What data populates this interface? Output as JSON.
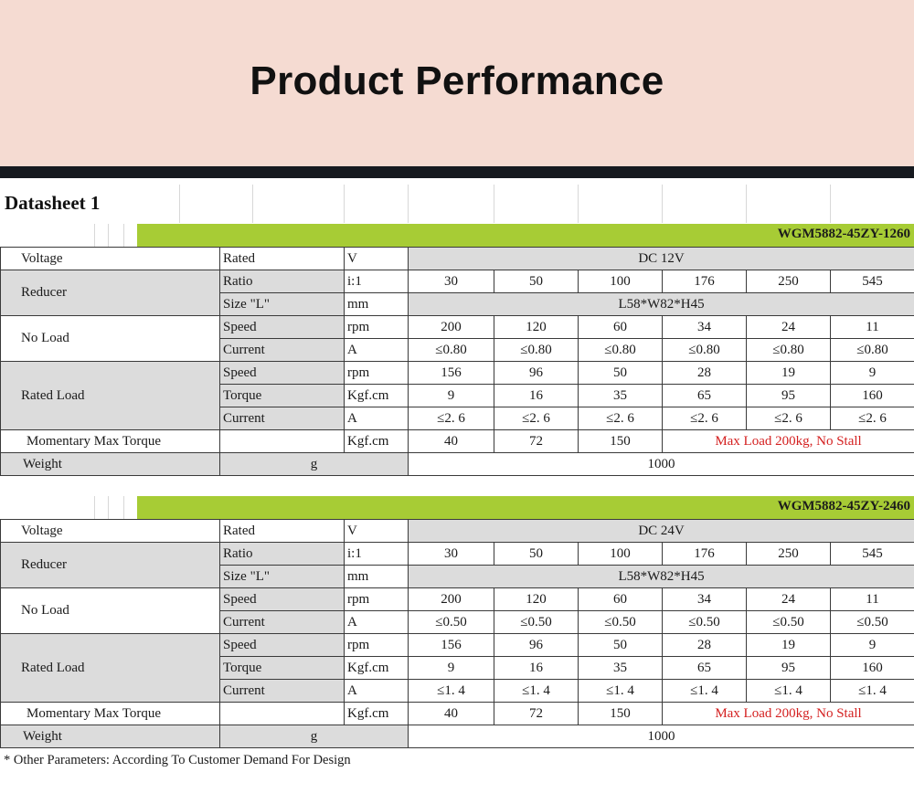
{
  "header": {
    "title": "Product Performance"
  },
  "sheet_title": "Datasheet 1",
  "labels": {
    "voltage": "Voltage",
    "rated": "Rated",
    "v_unit": "V",
    "reducer": "Reducer",
    "ratio": "Ratio",
    "ratio_unit": "i:1",
    "size": "Size \"L\"",
    "mm": "mm",
    "no_load": "No Load",
    "speed": "Speed",
    "rpm": "rpm",
    "current": "Current",
    "amp": "A",
    "rated_load": "Rated Load",
    "torque": "Torque",
    "kgfcm": "Kgf.cm",
    "momentary": "Momentary Max Torque",
    "weight": "Weight",
    "g": "g"
  },
  "tables": [
    {
      "model": "WGM5882-45ZY-1260",
      "voltage": "DC 12V",
      "ratios": [
        "30",
        "50",
        "100",
        "176",
        "250",
        "545"
      ],
      "size": "L58*W82*H45",
      "no_load_speed": [
        "200",
        "120",
        "60",
        "34",
        "24",
        "11"
      ],
      "no_load_current": [
        "≤0.80",
        "≤0.80",
        "≤0.80",
        "≤0.80",
        "≤0.80",
        "≤0.80"
      ],
      "rated_speed": [
        "156",
        "96",
        "50",
        "28",
        "19",
        "9"
      ],
      "rated_torque": [
        "9",
        "16",
        "35",
        "65",
        "95",
        "160"
      ],
      "rated_current": [
        "≤2. 6",
        "≤2. 6",
        "≤2. 6",
        "≤2. 6",
        "≤2. 6",
        "≤2. 6"
      ],
      "momentary": [
        "40",
        "72",
        "150"
      ],
      "momentary_note": "Max Load 200kg, No Stall",
      "weight": "1000"
    },
    {
      "model": "WGM5882-45ZY-2460",
      "voltage": "DC 24V",
      "ratios": [
        "30",
        "50",
        "100",
        "176",
        "250",
        "545"
      ],
      "size": "L58*W82*H45",
      "no_load_speed": [
        "200",
        "120",
        "60",
        "34",
        "24",
        "11"
      ],
      "no_load_current": [
        "≤0.50",
        "≤0.50",
        "≤0.50",
        "≤0.50",
        "≤0.50",
        "≤0.50"
      ],
      "rated_speed": [
        "156",
        "96",
        "50",
        "28",
        "19",
        "9"
      ],
      "rated_torque": [
        "9",
        "16",
        "35",
        "65",
        "95",
        "160"
      ],
      "rated_current": [
        "≤1. 4",
        "≤1. 4",
        "≤1. 4",
        "≤1. 4",
        "≤1. 4",
        "≤1. 4"
      ],
      "momentary": [
        "40",
        "72",
        "150"
      ],
      "momentary_note": "Max Load 200kg, No Stall",
      "weight": "1000"
    }
  ],
  "footnote": "* Other Parameters: According To Customer Demand For Design",
  "colors": {
    "banner": "#f5dbd2",
    "model_bar": "#a7cc35",
    "grey_cell": "#dcdcdc",
    "note_red": "#d42020"
  }
}
